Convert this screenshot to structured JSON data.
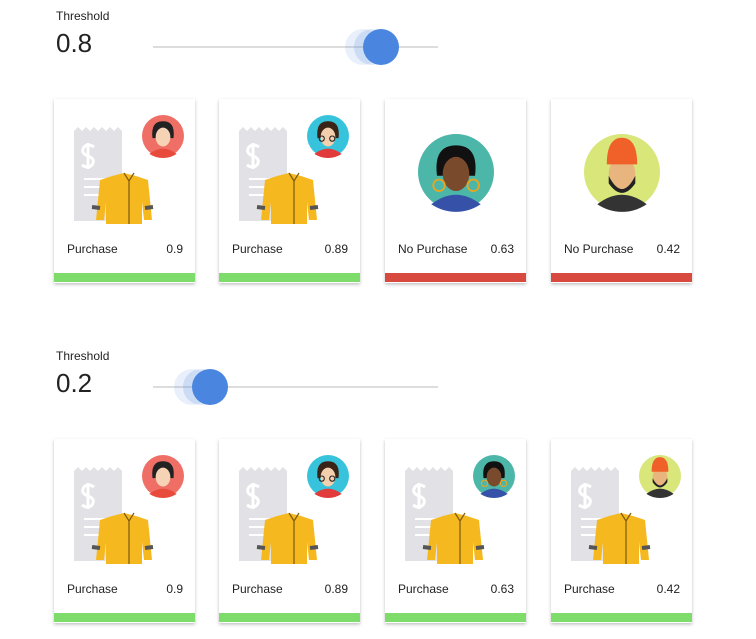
{
  "panels": [
    {
      "label": "Threshold",
      "value": 0.8,
      "cards": [
        {
          "label": "Purchase",
          "score": 0.9
        },
        {
          "label": "Purchase",
          "score": 0.89
        },
        {
          "label": "No Purchase",
          "score": 0.63
        },
        {
          "label": "No Purchase",
          "score": 0.42
        }
      ]
    },
    {
      "label": "Threshold",
      "value": 0.2,
      "cards": [
        {
          "label": "Purchase",
          "score": 0.9
        },
        {
          "label": "Purchase",
          "score": 0.89
        },
        {
          "label": "Purchase",
          "score": 0.63
        },
        {
          "label": "Purchase",
          "score": 0.42
        }
      ]
    }
  ]
}
